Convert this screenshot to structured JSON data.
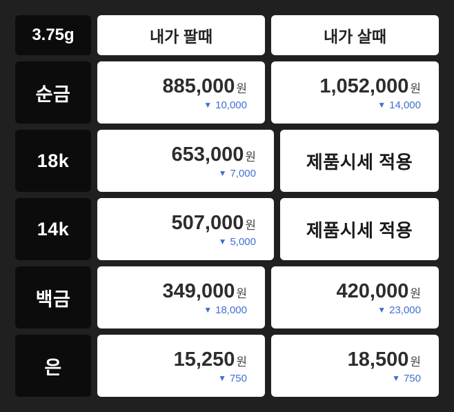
{
  "colors": {
    "page_background": "#202020",
    "label_background": "#0c0c0c",
    "cell_background": "#ffffff",
    "price_text": "#2d2d2d",
    "change_blue": "#3e6fd0"
  },
  "header": {
    "unit_label": "3.75g",
    "sell_label": "내가 팔때",
    "buy_label": "내가 살때"
  },
  "currency_suffix": "원",
  "icons": {
    "down_triangle": "▼"
  },
  "rows": [
    {
      "label": "순금",
      "sell": {
        "price": "885,000",
        "change": "10,000"
      },
      "buy": {
        "price": "1,052,000",
        "change": "14,000"
      }
    },
    {
      "label": "18k",
      "sell": {
        "price": "653,000",
        "change": "7,000"
      },
      "buy": {
        "text": "제품시세 적용"
      }
    },
    {
      "label": "14k",
      "sell": {
        "price": "507,000",
        "change": "5,000"
      },
      "buy": {
        "text": "제품시세 적용"
      }
    },
    {
      "label": "백금",
      "sell": {
        "price": "349,000",
        "change": "18,000"
      },
      "buy": {
        "price": "420,000",
        "change": "23,000"
      }
    },
    {
      "label": "은",
      "sell": {
        "price": "15,250",
        "change": "750"
      },
      "buy": {
        "price": "18,500",
        "change": "750"
      }
    }
  ],
  "chart_data": {
    "type": "table",
    "title": "3.75g",
    "columns": [
      "3.75g",
      "내가 팔때",
      "내가 살때"
    ],
    "rows": [
      {
        "item": "순금",
        "sell_price": 885000,
        "sell_change": -10000,
        "buy_price": 1052000,
        "buy_change": -14000
      },
      {
        "item": "18k",
        "sell_price": 653000,
        "sell_change": -7000,
        "buy": "제품시세 적용"
      },
      {
        "item": "14k",
        "sell_price": 507000,
        "sell_change": -5000,
        "buy": "제품시세 적용"
      },
      {
        "item": "백금",
        "sell_price": 349000,
        "sell_change": -18000,
        "buy_price": 420000,
        "buy_change": -23000
      },
      {
        "item": "은",
        "sell_price": 15250,
        "sell_change": -750,
        "buy_price": 18500,
        "buy_change": -750
      }
    ]
  }
}
